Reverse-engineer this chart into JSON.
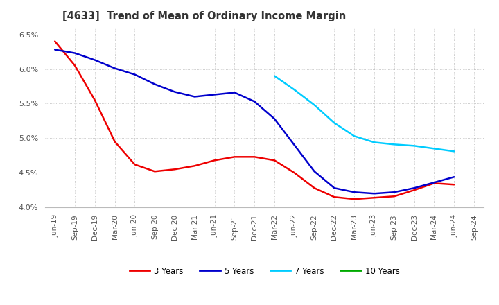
{
  "title": "[4633]  Trend of Mean of Ordinary Income Margin",
  "x_labels": [
    "Jun-19",
    "Sep-19",
    "Dec-19",
    "Mar-20",
    "Jun-20",
    "Sep-20",
    "Dec-20",
    "Mar-21",
    "Jun-21",
    "Sep-21",
    "Dec-21",
    "Mar-22",
    "Jun-22",
    "Sep-22",
    "Dec-22",
    "Mar-23",
    "Jun-23",
    "Sep-23",
    "Dec-23",
    "Mar-24",
    "Jun-24",
    "Sep-24"
  ],
  "ylim": [
    0.04,
    0.066
  ],
  "yticks": [
    0.04,
    0.045,
    0.05,
    0.055,
    0.06,
    0.065
  ],
  "series": {
    "3 Years": {
      "color": "#EE0000",
      "indices": [
        0,
        1,
        2,
        3,
        4,
        5,
        6,
        7,
        8,
        9,
        10,
        11,
        12,
        13,
        14,
        15,
        16,
        17,
        18,
        19,
        20
      ],
      "values": [
        0.064,
        0.0605,
        0.0555,
        0.0495,
        0.0462,
        0.0452,
        0.0455,
        0.046,
        0.0468,
        0.0473,
        0.0473,
        0.0468,
        0.045,
        0.0428,
        0.0415,
        0.0412,
        0.0414,
        0.0416,
        0.0425,
        0.0435,
        0.0433
      ]
    },
    "5 Years": {
      "color": "#0000CC",
      "indices": [
        0,
        1,
        2,
        3,
        4,
        5,
        6,
        7,
        8,
        9,
        10,
        11,
        12,
        13,
        14,
        15,
        16,
        17,
        18,
        19,
        20
      ],
      "values": [
        0.0628,
        0.0623,
        0.0613,
        0.0601,
        0.0592,
        0.0578,
        0.0567,
        0.056,
        0.0563,
        0.0566,
        0.0553,
        0.0528,
        0.049,
        0.0452,
        0.0428,
        0.0422,
        0.042,
        0.0422,
        0.0428,
        0.0436,
        0.0444
      ]
    },
    "7 Years": {
      "color": "#00CCFF",
      "indices": [
        11,
        12,
        13,
        14,
        15,
        16,
        17,
        18,
        19,
        20
      ],
      "values": [
        0.059,
        0.057,
        0.0548,
        0.0522,
        0.0503,
        0.0494,
        0.0491,
        0.0489,
        0.0485,
        0.0481
      ]
    },
    "10 Years": {
      "color": "#00AA00",
      "indices": [],
      "values": []
    }
  },
  "legend_labels": [
    "3 Years",
    "5 Years",
    "7 Years",
    "10 Years"
  ],
  "legend_colors": [
    "#EE0000",
    "#0000CC",
    "#00CCFF",
    "#00AA00"
  ],
  "background_color": "#FFFFFF",
  "grid_color": "#BBBBBB"
}
